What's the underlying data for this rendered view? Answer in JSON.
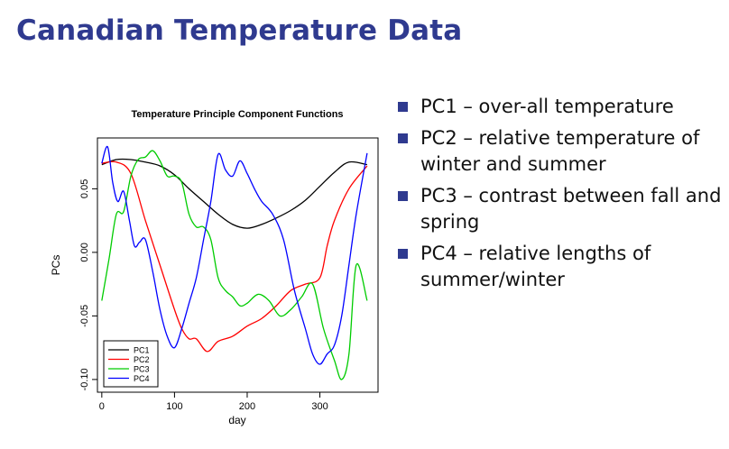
{
  "title": "Canadian Temperature Data",
  "bullets": [
    "PC1 – over-all temperature",
    "PC2 – relative temperature of winter and summer",
    "PC3 – contrast between fall and spring",
    "PC4 – relative lengths of summer/winter"
  ],
  "chart_data": {
    "type": "line",
    "title": "Temperature Principle Component Functions",
    "xlabel": "day",
    "ylabel": "PCs",
    "xlim": [
      0,
      365
    ],
    "ylim": [
      -0.11,
      0.09
    ],
    "xticks": [
      0,
      100,
      200,
      300
    ],
    "yticks": [
      -0.1,
      -0.05,
      0.0,
      0.05
    ],
    "ytick_labels": [
      "-0.10",
      "-0.05",
      "0.00",
      "0.05"
    ],
    "legend_position": "bottom-left",
    "grid": false,
    "series": [
      {
        "name": "PC1",
        "color": "#000000",
        "x": [
          0,
          20,
          40,
          60,
          80,
          100,
          120,
          140,
          160,
          180,
          200,
          220,
          240,
          260,
          280,
          300,
          320,
          340,
          365
        ],
        "values": [
          0.069,
          0.073,
          0.073,
          0.071,
          0.068,
          0.061,
          0.05,
          0.04,
          0.03,
          0.022,
          0.019,
          0.022,
          0.027,
          0.033,
          0.041,
          0.052,
          0.063,
          0.071,
          0.069
        ]
      },
      {
        "name": "PC2",
        "color": "#ff0000",
        "x": [
          0,
          20,
          40,
          60,
          80,
          100,
          110,
          120,
          130,
          145,
          160,
          180,
          200,
          220,
          240,
          260,
          280,
          300,
          310,
          320,
          340,
          365
        ],
        "values": [
          0.07,
          0.071,
          0.062,
          0.025,
          -0.01,
          -0.045,
          -0.06,
          -0.068,
          -0.068,
          -0.078,
          -0.07,
          -0.066,
          -0.058,
          -0.052,
          -0.042,
          -0.03,
          -0.025,
          -0.02,
          0.005,
          0.025,
          0.05,
          0.068
        ]
      },
      {
        "name": "PC3",
        "color": "#00cc00",
        "x": [
          0,
          10,
          20,
          30,
          40,
          50,
          60,
          70,
          80,
          90,
          100,
          110,
          120,
          130,
          140,
          150,
          160,
          170,
          180,
          190,
          200,
          215,
          230,
          245,
          260,
          275,
          290,
          305,
          320,
          330,
          340,
          350,
          365
        ],
        "values": [
          -0.038,
          -0.005,
          0.03,
          0.032,
          0.06,
          0.073,
          0.075,
          0.08,
          0.072,
          0.06,
          0.06,
          0.055,
          0.03,
          0.02,
          0.02,
          0.01,
          -0.02,
          -0.03,
          -0.035,
          -0.042,
          -0.04,
          -0.033,
          -0.038,
          -0.05,
          -0.045,
          -0.035,
          -0.025,
          -0.06,
          -0.085,
          -0.1,
          -0.08,
          -0.01,
          -0.038
        ]
      },
      {
        "name": "PC4",
        "color": "#0000ff",
        "x": [
          0,
          8,
          15,
          22,
          30,
          38,
          45,
          52,
          60,
          70,
          80,
          90,
          100,
          110,
          120,
          130,
          140,
          150,
          160,
          170,
          180,
          190,
          200,
          210,
          220,
          235,
          250,
          265,
          280,
          290,
          300,
          310,
          320,
          330,
          340,
          350,
          365
        ],
        "values": [
          0.07,
          0.083,
          0.055,
          0.04,
          0.048,
          0.025,
          0.005,
          0.008,
          0.01,
          -0.015,
          -0.045,
          -0.066,
          -0.075,
          -0.06,
          -0.04,
          -0.02,
          0.01,
          0.04,
          0.077,
          0.065,
          0.06,
          0.072,
          0.062,
          0.05,
          0.04,
          0.03,
          0.01,
          -0.03,
          -0.06,
          -0.08,
          -0.088,
          -0.08,
          -0.073,
          -0.05,
          -0.01,
          0.03,
          0.078
        ]
      }
    ]
  }
}
